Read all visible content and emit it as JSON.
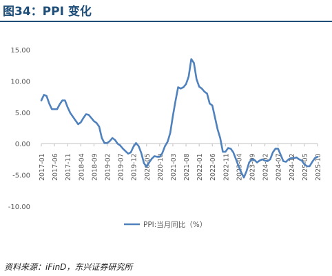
{
  "figure_title": "图34：PPI 变化",
  "source_note": "资料来源：iFinD，东兴证券研究所",
  "colors": {
    "line": "#4f81bd",
    "title": "#1f4e79",
    "axis": "#bfbfbf",
    "tick_text": "#595959"
  },
  "chart_data": {
    "type": "line",
    "title": "",
    "xlabel": "",
    "ylabel": "",
    "ylim": [
      -10,
      15
    ],
    "yticks": [
      "15.00",
      "10.00",
      "5.00",
      "0.00",
      "-5.00",
      "-10.00"
    ],
    "x_tick_labels": [
      "2017-01",
      "2017-06",
      "2017-11",
      "2018-04",
      "2018-09",
      "2019-02",
      "2019-07",
      "2019-12",
      "2020-05",
      "2020-10",
      "2021-03",
      "2021-08",
      "2022-01",
      "2022-06",
      "2022-11",
      "2023-04",
      "2023-09",
      "2024-02",
      "2024-07",
      "2024-12",
      "2025-05",
      "2025-10"
    ],
    "legend_position": "bottom",
    "grid": false,
    "series": [
      {
        "name": "PPI:当月同比（%）",
        "x": [
          "2017-01",
          "2017-02",
          "2017-03",
          "2017-04",
          "2017-05",
          "2017-06",
          "2017-07",
          "2017-08",
          "2017-09",
          "2017-10",
          "2017-11",
          "2017-12",
          "2018-01",
          "2018-02",
          "2018-03",
          "2018-04",
          "2018-05",
          "2018-06",
          "2018-07",
          "2018-08",
          "2018-09",
          "2018-10",
          "2018-11",
          "2018-12",
          "2019-01",
          "2019-02",
          "2019-03",
          "2019-04",
          "2019-05",
          "2019-06",
          "2019-07",
          "2019-08",
          "2019-09",
          "2019-10",
          "2019-11",
          "2019-12",
          "2020-01",
          "2020-02",
          "2020-03",
          "2020-04",
          "2020-05",
          "2020-06",
          "2020-07",
          "2020-08",
          "2020-09",
          "2020-10",
          "2020-11",
          "2020-12",
          "2021-01",
          "2021-02",
          "2021-03",
          "2021-04",
          "2021-05",
          "2021-06",
          "2021-07",
          "2021-08",
          "2021-09",
          "2021-10",
          "2021-11",
          "2021-12",
          "2022-01",
          "2022-02",
          "2022-03",
          "2022-04",
          "2022-05",
          "2022-06",
          "2022-07",
          "2022-08",
          "2022-09",
          "2022-10",
          "2022-11",
          "2022-12",
          "2023-01",
          "2023-02",
          "2023-03",
          "2023-04",
          "2023-05",
          "2023-06",
          "2023-07",
          "2023-08",
          "2023-09",
          "2023-10",
          "2023-11",
          "2023-12",
          "2024-01",
          "2024-02",
          "2024-03",
          "2024-04",
          "2024-05",
          "2024-06",
          "2024-07",
          "2024-08",
          "2024-09",
          "2024-10",
          "2024-11",
          "2024-12",
          "2025-01",
          "2025-02",
          "2025-03",
          "2025-04",
          "2025-05",
          "2025-06",
          "2025-07",
          "2025-08",
          "2025-09",
          "2025-10"
        ],
        "values": [
          6.9,
          7.8,
          7.6,
          6.4,
          5.5,
          5.5,
          5.5,
          6.3,
          6.9,
          6.9,
          5.8,
          4.9,
          4.3,
          3.7,
          3.1,
          3.4,
          4.1,
          4.7,
          4.6,
          4.1,
          3.6,
          3.3,
          2.7,
          0.9,
          0.1,
          0.1,
          0.4,
          0.9,
          0.6,
          0.0,
          -0.3,
          -0.8,
          -1.2,
          -1.6,
          -1.4,
          -0.5,
          0.1,
          -0.4,
          -1.5,
          -3.1,
          -3.7,
          -3.0,
          -2.4,
          -2.0,
          -2.1,
          -2.1,
          -1.5,
          -0.4,
          0.3,
          1.7,
          4.4,
          6.8,
          9.0,
          8.8,
          9.0,
          9.5,
          10.7,
          13.5,
          12.9,
          10.3,
          9.1,
          8.8,
          8.3,
          8.0,
          6.4,
          6.1,
          4.2,
          2.3,
          0.9,
          -1.3,
          -1.3,
          -0.7,
          -0.8,
          -1.4,
          -2.5,
          -3.6,
          -4.6,
          -5.4,
          -4.4,
          -3.0,
          -2.5,
          -2.6,
          -3.0,
          -2.7,
          -2.5,
          -2.7,
          -2.8,
          -2.5,
          -1.4,
          -0.8,
          -0.8,
          -1.8,
          -2.8,
          -2.9,
          -2.5,
          -2.3,
          -2.3,
          -2.2,
          -2.5,
          -2.7,
          -3.3,
          -3.6,
          -3.6,
          -2.9,
          -2.3,
          -2.1
        ]
      }
    ]
  }
}
